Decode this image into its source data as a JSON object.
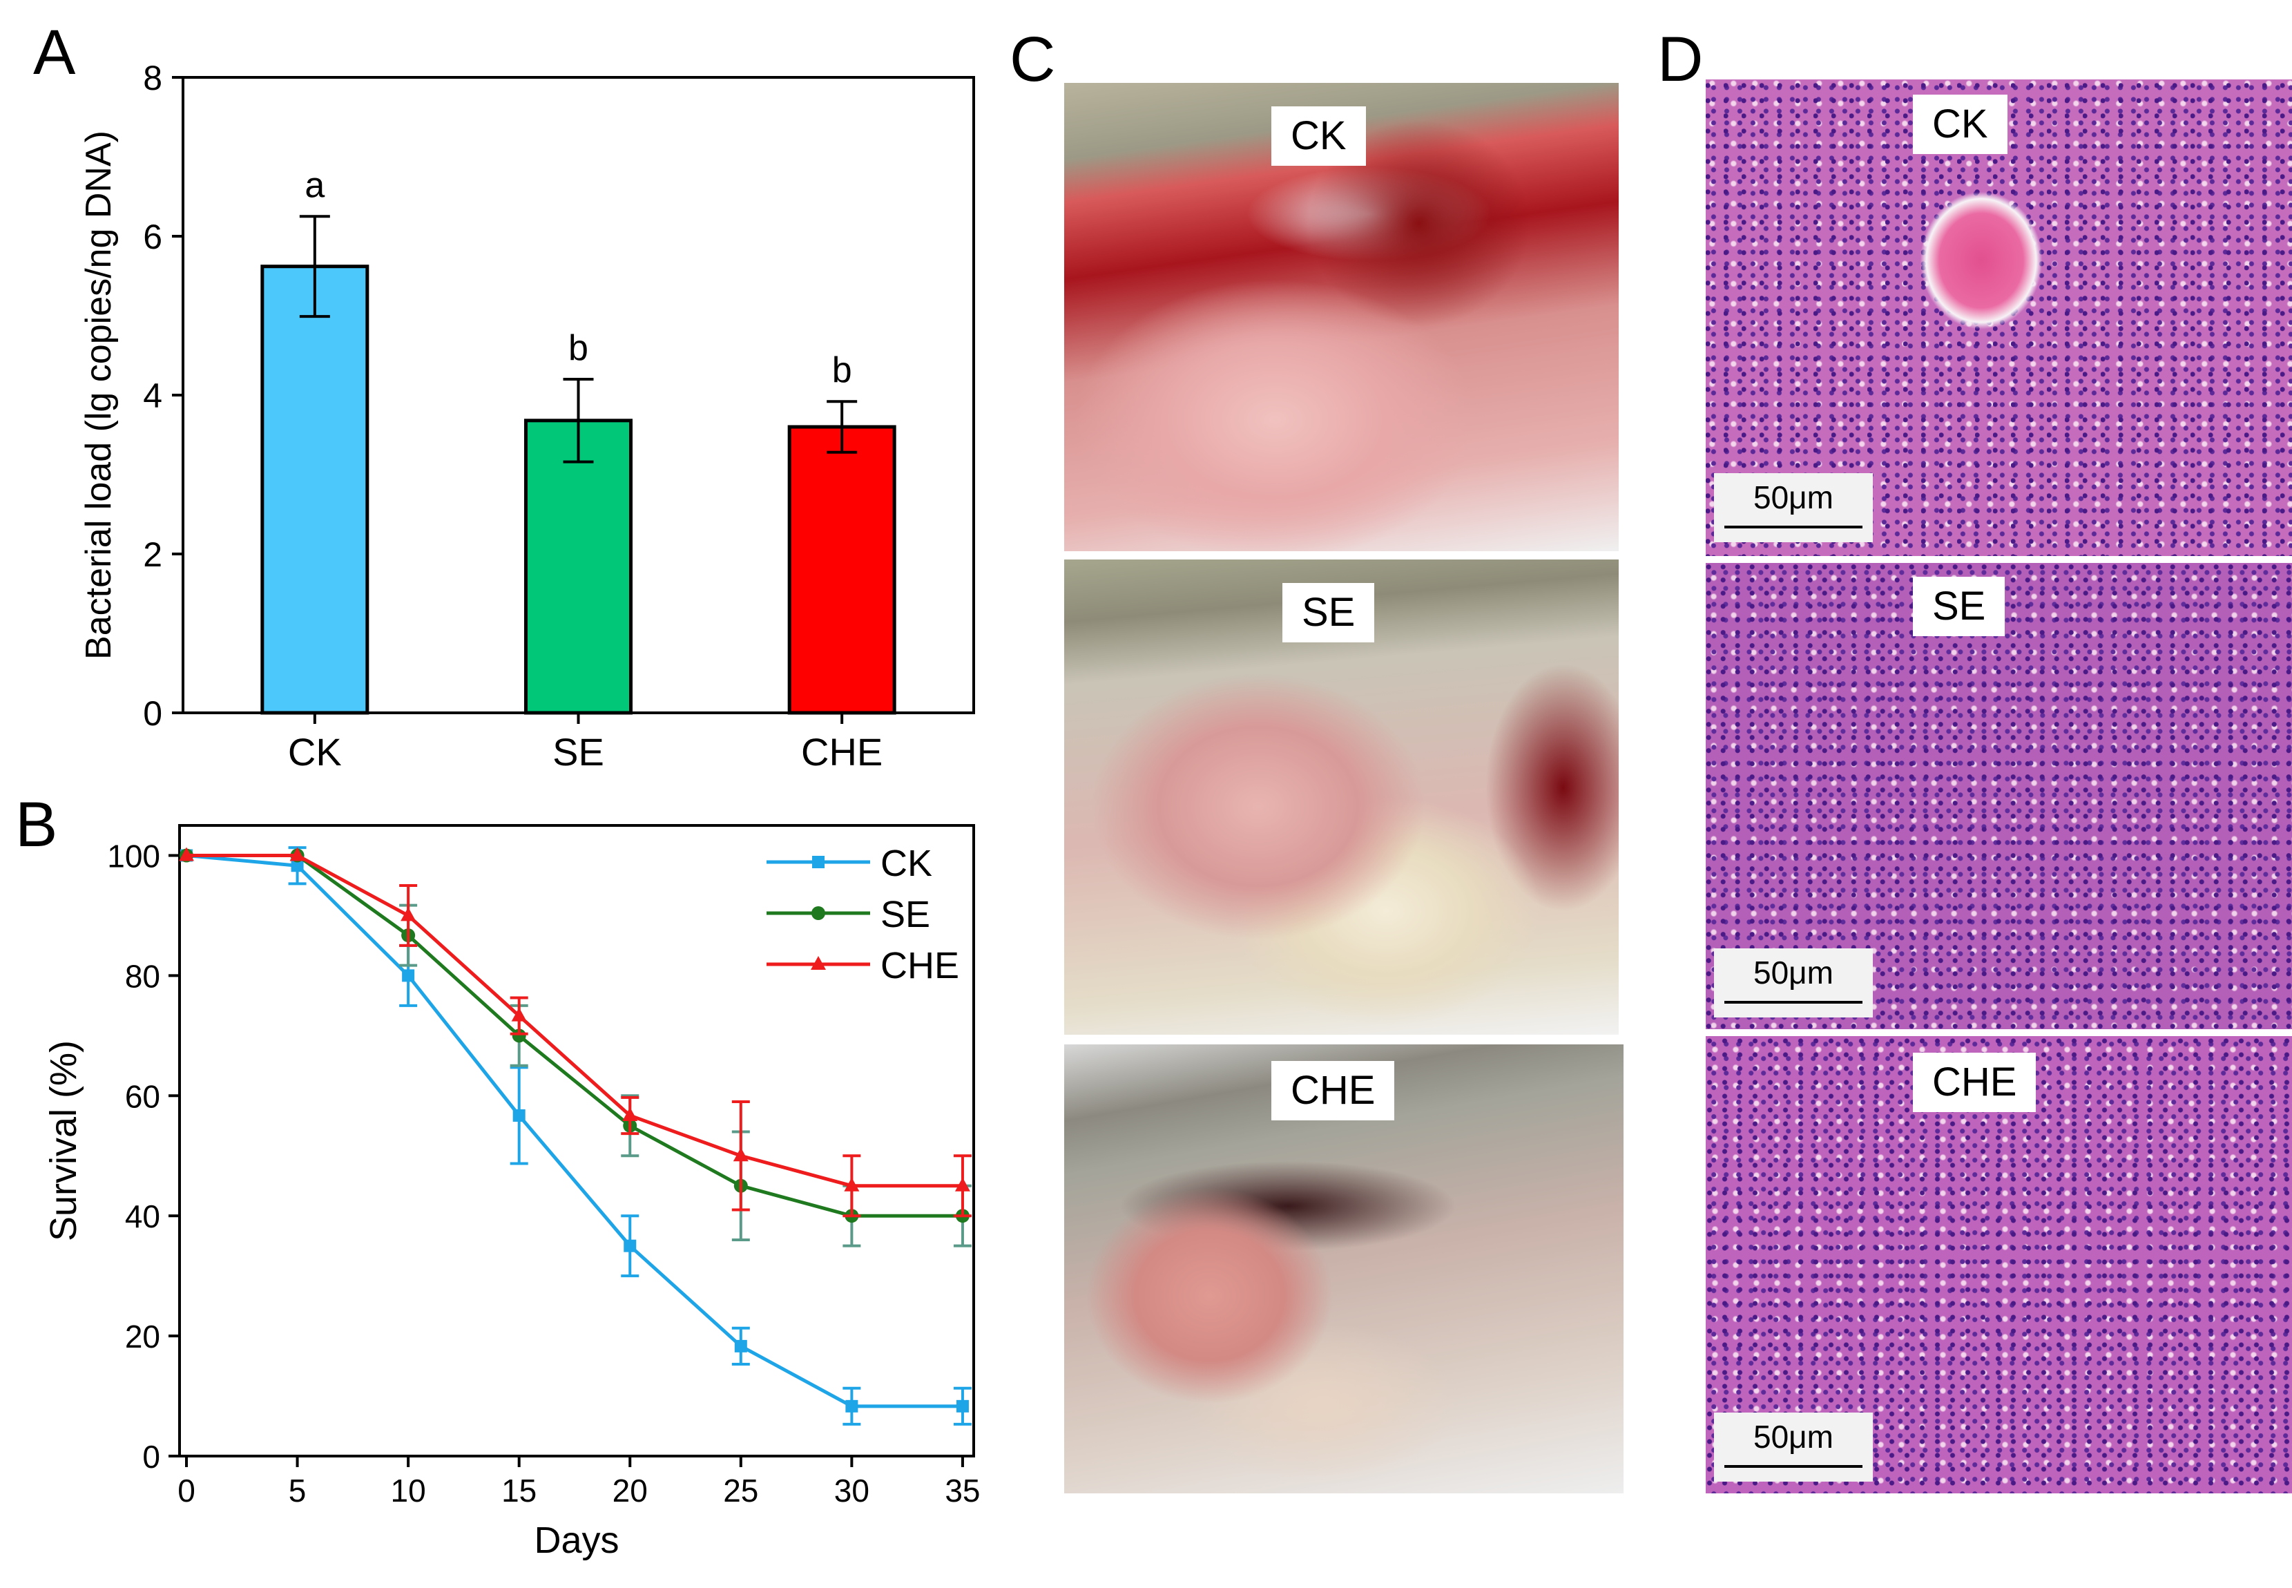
{
  "panels": {
    "a": {
      "letter": "A"
    },
    "b": {
      "letter": "B"
    },
    "c": {
      "letter": "C",
      "photos": [
        {
          "label": "CK"
        },
        {
          "label": "SE"
        },
        {
          "label": "CHE"
        }
      ]
    },
    "d": {
      "letter": "D",
      "photos": [
        {
          "label": "CK",
          "scale": "50μm"
        },
        {
          "label": "SE",
          "scale": "50μm"
        },
        {
          "label": "CHE",
          "scale": "50μm"
        }
      ]
    }
  },
  "colors": {
    "ck": "#4dc8fa",
    "se": "#00c878",
    "che": "#ff0000",
    "line_ck": "#1ea5e8",
    "line_se": "#1f7a1f",
    "line_che": "#ee1c1c",
    "tissue_bg": "#d06fbf",
    "tissue_nuclei": "#55208c",
    "tissue_pink": "#e84f9b"
  },
  "chart_data": [
    {
      "id": "A",
      "type": "bar",
      "title": "",
      "xlabel": "",
      "ylabel": "Bacterial load (lg copies/ng DNA)",
      "ylim": [
        0,
        8
      ],
      "yticks": [
        "0",
        "2",
        "4",
        "6",
        "8"
      ],
      "categories": [
        "CK",
        "SE",
        "CHE"
      ],
      "values": [
        5.62,
        3.68,
        3.6
      ],
      "errors": [
        0.63,
        0.52,
        0.32
      ],
      "significance": [
        "a",
        "b",
        "b"
      ],
      "bar_colors": [
        "#4dc8fa",
        "#00c878",
        "#ff0000"
      ]
    },
    {
      "id": "B",
      "type": "line",
      "title": "",
      "xlabel": "Days",
      "ylabel": "Survival (%)",
      "xlim": [
        0,
        35.5
      ],
      "ylim": [
        0,
        105
      ],
      "xticks": [
        "0",
        "5",
        "10",
        "15",
        "20",
        "25",
        "30",
        "35"
      ],
      "yticks": [
        "0",
        "20",
        "40",
        "60",
        "80",
        "100"
      ],
      "x": [
        0,
        5,
        10,
        15,
        20,
        25,
        30,
        35
      ],
      "legend_position": "top-right",
      "series": [
        {
          "name": "CK",
          "marker": "square",
          "color": "#1ea5e8",
          "values": [
            100,
            98.3,
            80,
            56.7,
            35,
            18.3,
            8.3,
            8.3
          ],
          "errors": [
            0,
            3,
            5,
            8,
            5,
            3,
            3,
            3
          ]
        },
        {
          "name": "SE",
          "marker": "circle",
          "color": "#1f7a1f",
          "values": [
            100,
            100,
            86.7,
            70,
            55,
            45,
            40,
            40
          ],
          "errors": [
            0,
            0,
            5,
            5,
            5,
            9,
            5,
            5
          ]
        },
        {
          "name": "CHE",
          "marker": "triangle",
          "color": "#ee1c1c",
          "values": [
            100,
            100,
            90,
            73.3,
            56.7,
            50,
            45,
            45
          ],
          "errors": [
            0,
            0,
            5,
            3,
            3,
            9,
            5,
            5
          ]
        }
      ]
    }
  ]
}
